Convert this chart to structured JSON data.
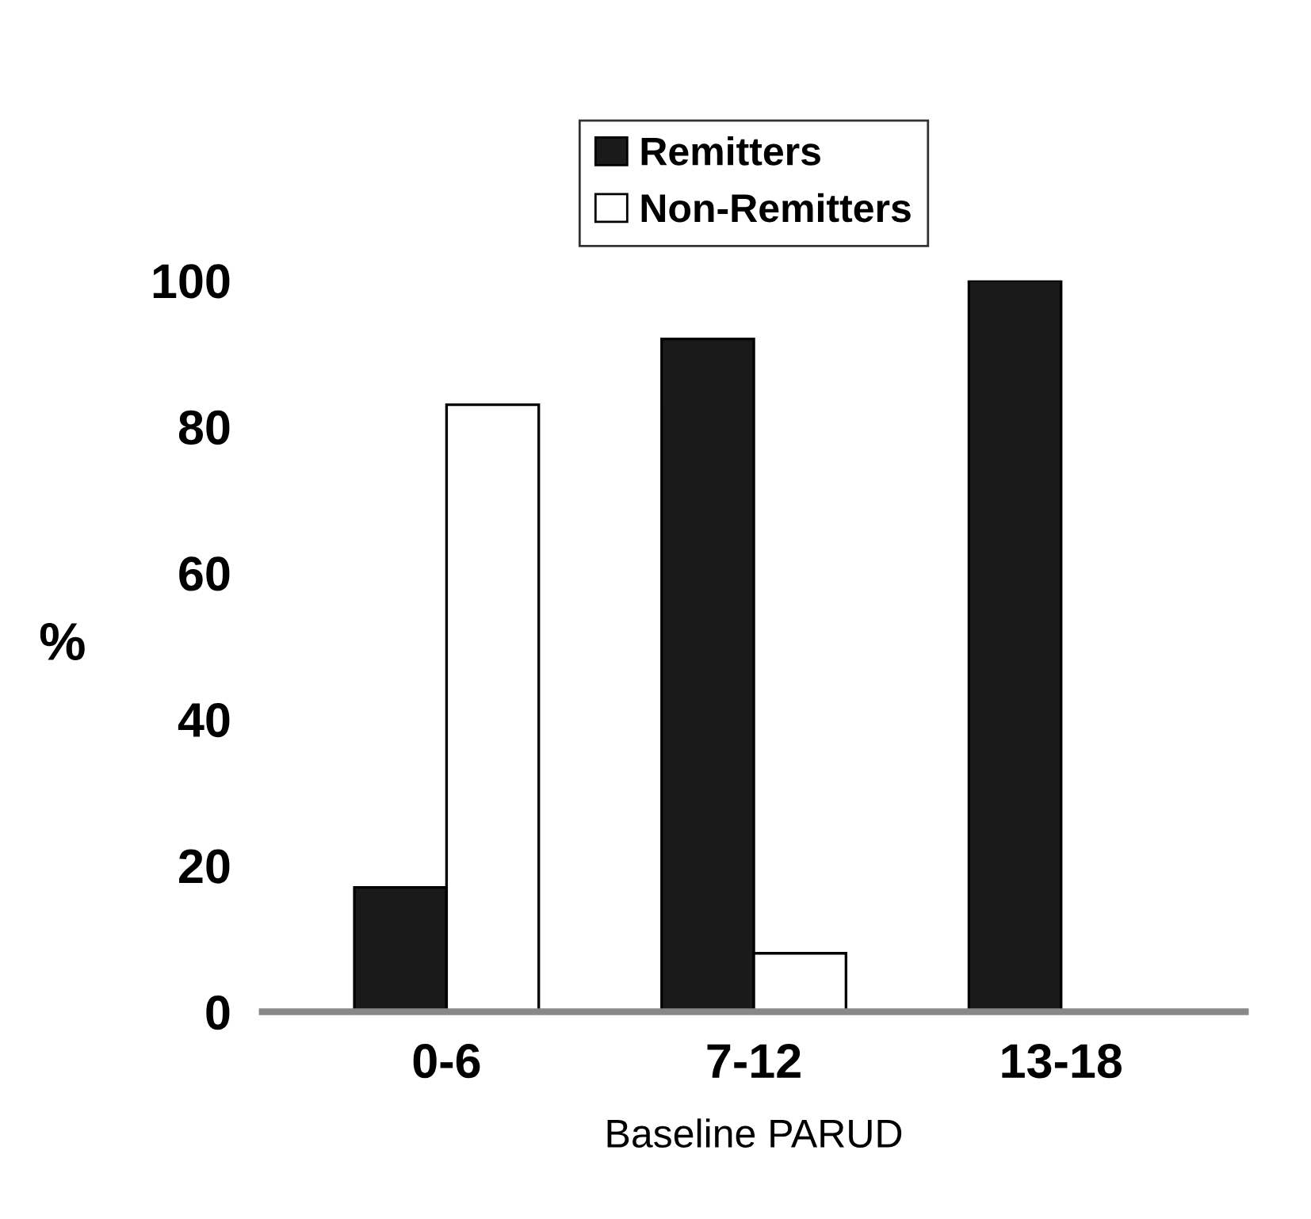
{
  "chart_data": {
    "type": "bar",
    "xlabel": "Baseline PARUD",
    "ylabel": "%",
    "categories": [
      "0-6",
      "7-12",
      "13-18"
    ],
    "series": [
      {
        "name": "Remitters",
        "color": "#1a1a1a",
        "values": [
          17,
          92,
          100
        ]
      },
      {
        "name": "Non-Remitters",
        "color": "#ffffff",
        "values": [
          83,
          8,
          0
        ]
      }
    ],
    "ylim": [
      0,
      100
    ],
    "yticks": [
      0,
      20,
      40,
      60,
      80,
      100
    ],
    "grid": false,
    "legend": "top"
  }
}
